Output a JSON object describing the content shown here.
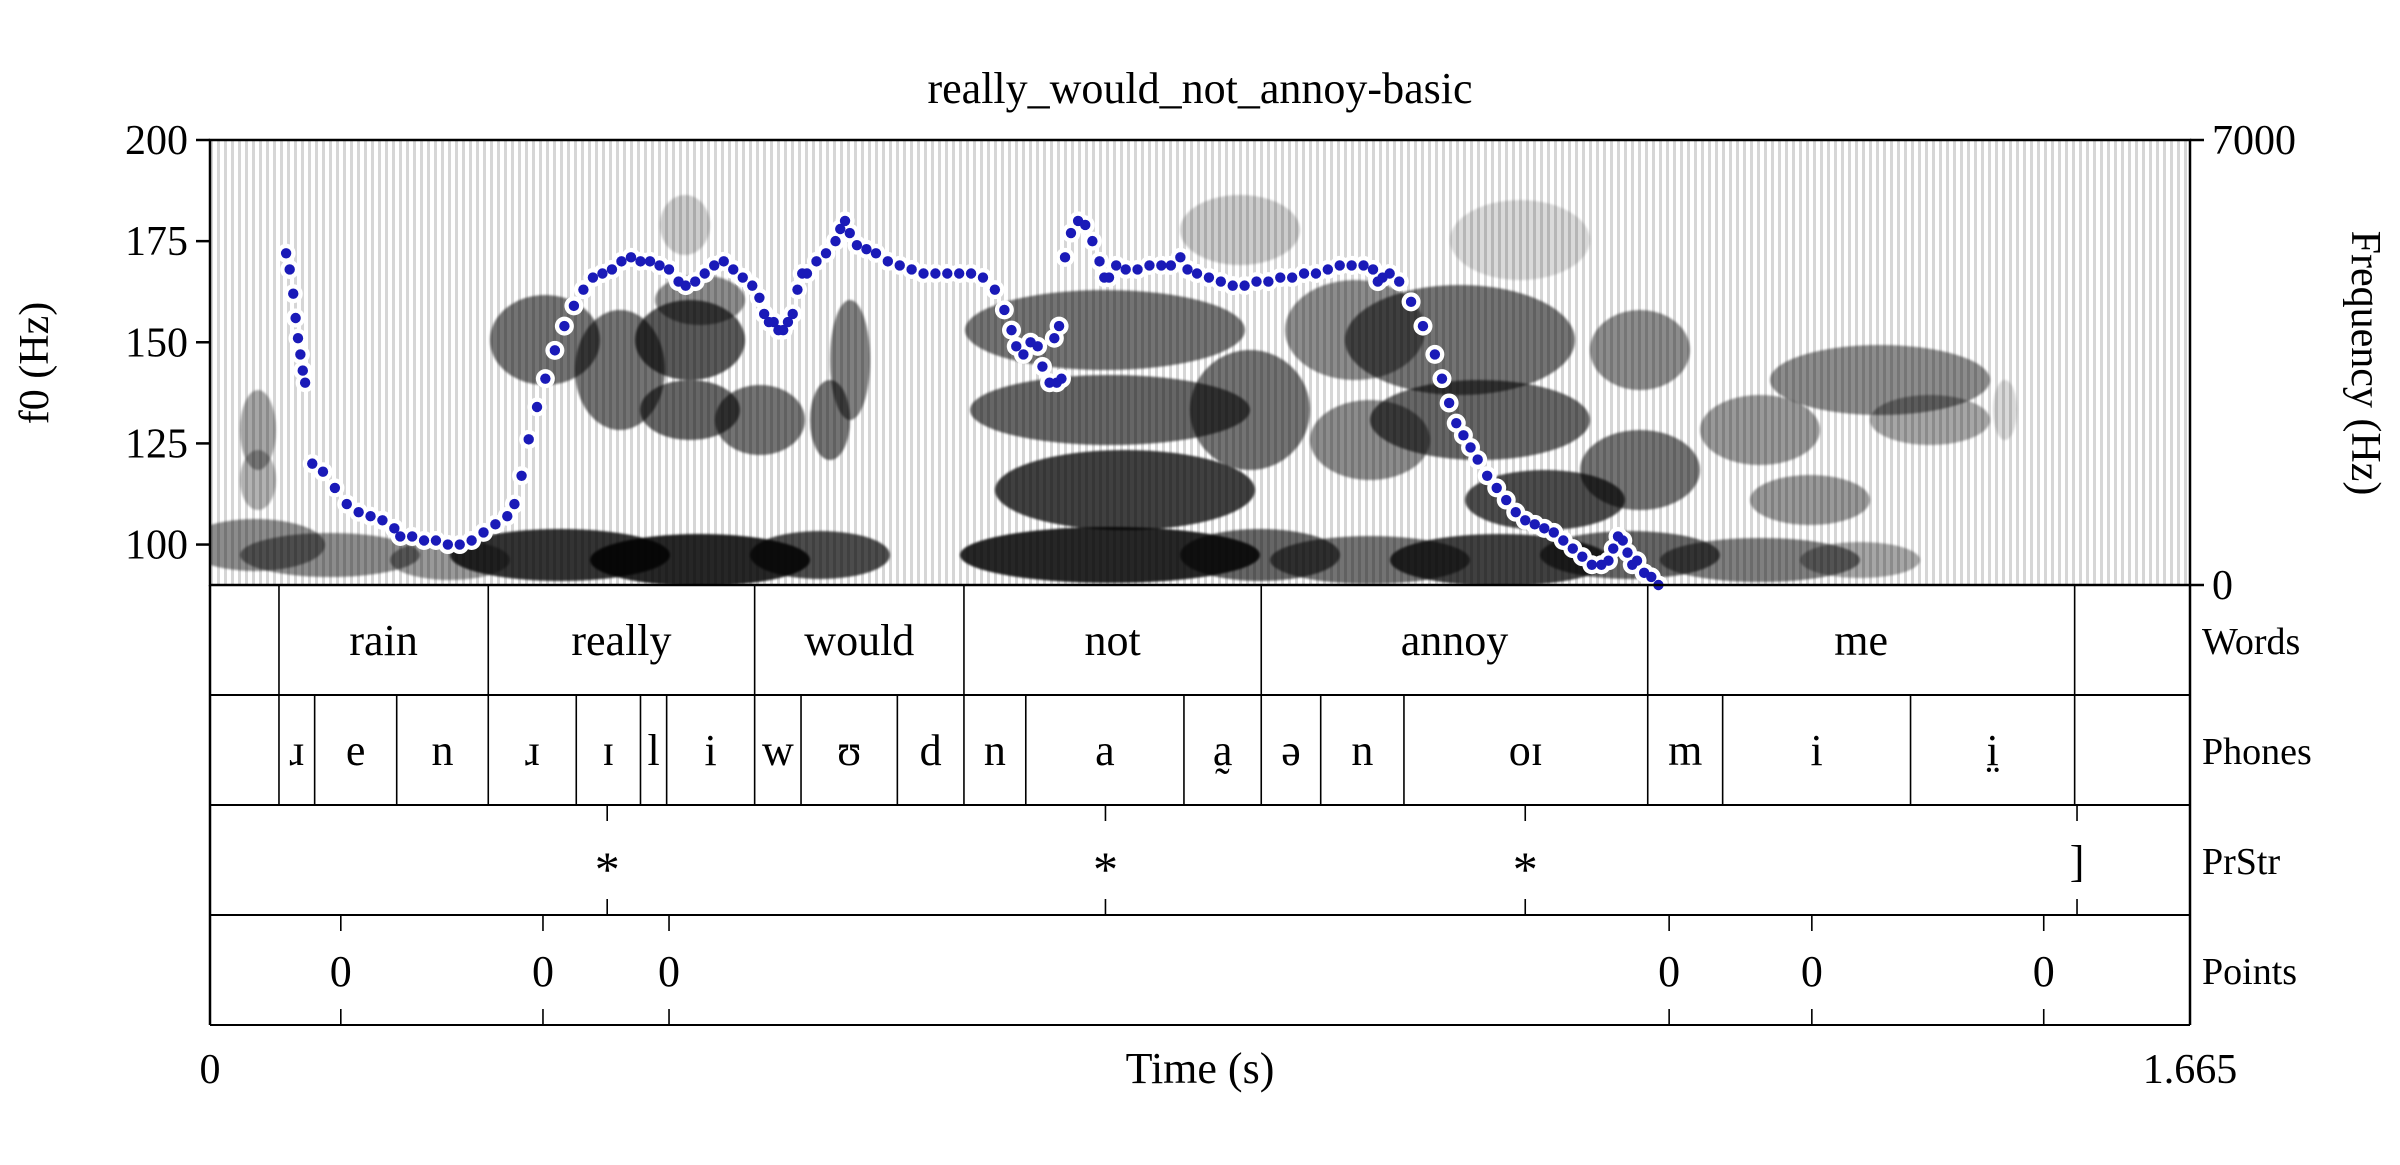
{
  "chart_data": {
    "type": "scatter",
    "title": "really_would_not_annoy-basic",
    "xlabel": "Time (s)",
    "ylabel": "f0 (Hz)",
    "ylabel_right": "Frequency (Hz)",
    "xlim": [
      0,
      1.665
    ],
    "x_tick_labels": [
      "0",
      "1.665"
    ],
    "ylim": [
      90,
      200
    ],
    "y_ticks": [
      100,
      125,
      150,
      175,
      200
    ],
    "y_right_ticks": [
      "0",
      "7000"
    ],
    "grid": false,
    "legend": "none",
    "colors": {
      "f0": "#1a1ab8",
      "halo": "#ffffff",
      "spectrogram": "#000000"
    },
    "f0_track": [
      [
        0.064,
        172
      ],
      [
        0.067,
        168
      ],
      [
        0.07,
        162
      ],
      [
        0.072,
        156
      ],
      [
        0.074,
        151
      ],
      [
        0.076,
        147
      ],
      [
        0.078,
        143
      ],
      [
        0.08,
        140
      ],
      [
        0.086,
        120
      ],
      [
        0.095,
        118
      ],
      [
        0.105,
        114
      ],
      [
        0.115,
        110
      ],
      [
        0.125,
        108
      ],
      [
        0.135,
        107
      ],
      [
        0.145,
        106
      ],
      [
        0.155,
        104
      ],
      [
        0.16,
        102
      ],
      [
        0.17,
        102
      ],
      [
        0.18,
        101
      ],
      [
        0.19,
        101
      ],
      [
        0.2,
        100
      ],
      [
        0.21,
        100
      ],
      [
        0.22,
        101
      ],
      [
        0.23,
        103
      ],
      [
        0.24,
        105
      ],
      [
        0.25,
        107
      ],
      [
        0.256,
        110
      ],
      [
        0.262,
        117
      ],
      [
        0.268,
        126
      ],
      [
        0.275,
        134
      ],
      [
        0.282,
        141
      ],
      [
        0.29,
        148
      ],
      [
        0.298,
        154
      ],
      [
        0.306,
        159
      ],
      [
        0.314,
        163
      ],
      [
        0.322,
        166
      ],
      [
        0.33,
        167
      ],
      [
        0.338,
        168
      ],
      [
        0.346,
        170
      ],
      [
        0.354,
        171
      ],
      [
        0.362,
        170
      ],
      [
        0.37,
        170
      ],
      [
        0.378,
        169
      ],
      [
        0.386,
        168
      ],
      [
        0.394,
        165
      ],
      [
        0.4,
        164
      ],
      [
        0.408,
        165
      ],
      [
        0.416,
        167
      ],
      [
        0.424,
        169
      ],
      [
        0.432,
        170
      ],
      [
        0.44,
        168
      ],
      [
        0.448,
        166
      ],
      [
        0.456,
        164
      ],
      [
        0.462,
        161
      ],
      [
        0.466,
        157
      ],
      [
        0.47,
        155
      ],
      [
        0.474,
        155
      ],
      [
        0.478,
        153
      ],
      [
        0.482,
        153
      ],
      [
        0.486,
        155
      ],
      [
        0.49,
        157
      ],
      [
        0.494,
        163
      ],
      [
        0.498,
        167
      ],
      [
        0.502,
        167
      ],
      [
        0.51,
        170
      ],
      [
        0.518,
        172
      ],
      [
        0.526,
        175
      ],
      [
        0.53,
        178
      ],
      [
        0.534,
        180
      ],
      [
        0.538,
        177
      ],
      [
        0.544,
        174
      ],
      [
        0.552,
        173
      ],
      [
        0.56,
        172
      ],
      [
        0.57,
        170
      ],
      [
        0.58,
        169
      ],
      [
        0.59,
        168
      ],
      [
        0.6,
        167
      ],
      [
        0.61,
        167
      ],
      [
        0.62,
        167
      ],
      [
        0.63,
        167
      ],
      [
        0.64,
        167
      ],
      [
        0.65,
        166
      ],
      [
        0.66,
        163
      ],
      [
        0.668,
        158
      ],
      [
        0.674,
        153
      ],
      [
        0.678,
        149
      ],
      [
        0.684,
        147
      ],
      [
        0.69,
        150
      ],
      [
        0.696,
        149
      ],
      [
        0.7,
        144
      ],
      [
        0.706,
        140
      ],
      [
        0.712,
        140
      ],
      [
        0.716,
        141
      ],
      [
        0.71,
        151
      ],
      [
        0.714,
        154
      ],
      [
        0.719,
        171
      ],
      [
        0.724,
        177
      ],
      [
        0.73,
        180
      ],
      [
        0.736,
        179
      ],
      [
        0.742,
        175
      ],
      [
        0.748,
        170
      ],
      [
        0.752,
        166
      ],
      [
        0.756,
        166
      ],
      [
        0.762,
        169
      ],
      [
        0.77,
        168
      ],
      [
        0.78,
        168
      ],
      [
        0.79,
        169
      ],
      [
        0.8,
        169
      ],
      [
        0.808,
        169
      ],
      [
        0.816,
        171
      ],
      [
        0.822,
        168
      ],
      [
        0.83,
        167
      ],
      [
        0.84,
        166
      ],
      [
        0.85,
        165
      ],
      [
        0.86,
        164
      ],
      [
        0.87,
        164
      ],
      [
        0.88,
        165
      ],
      [
        0.89,
        165
      ],
      [
        0.9,
        166
      ],
      [
        0.91,
        166
      ],
      [
        0.92,
        167
      ],
      [
        0.93,
        167
      ],
      [
        0.94,
        168
      ],
      [
        0.95,
        169
      ],
      [
        0.96,
        169
      ],
      [
        0.97,
        169
      ],
      [
        0.978,
        168
      ],
      [
        0.982,
        165
      ],
      [
        0.986,
        166
      ],
      [
        0.992,
        167
      ],
      [
        1.0,
        165
      ],
      [
        1.01,
        160
      ],
      [
        1.02,
        154
      ],
      [
        1.03,
        147
      ],
      [
        1.036,
        141
      ],
      [
        1.042,
        135
      ],
      [
        1.048,
        130
      ],
      [
        1.054,
        127
      ],
      [
        1.06,
        124
      ],
      [
        1.066,
        121
      ],
      [
        1.074,
        117
      ],
      [
        1.082,
        114
      ],
      [
        1.09,
        111
      ],
      [
        1.098,
        108
      ],
      [
        1.106,
        106
      ],
      [
        1.114,
        105
      ],
      [
        1.122,
        104
      ],
      [
        1.13,
        103
      ],
      [
        1.138,
        101
      ],
      [
        1.146,
        99
      ],
      [
        1.154,
        97
      ],
      [
        1.162,
        95
      ],
      [
        1.17,
        95
      ],
      [
        1.176,
        96
      ],
      [
        1.18,
        99
      ],
      [
        1.184,
        102
      ],
      [
        1.188,
        101
      ],
      [
        1.192,
        98
      ],
      [
        1.196,
        95
      ],
      [
        1.2,
        96
      ],
      [
        1.206,
        93
      ],
      [
        1.212,
        92
      ],
      [
        1.218,
        90
      ]
    ],
    "tiers": [
      {
        "name": "Words",
        "type": "interval",
        "intervals": [
          {
            "start": 0.058,
            "end": 0.234,
            "label": "rain"
          },
          {
            "start": 0.234,
            "end": 0.458,
            "label": "really"
          },
          {
            "start": 0.458,
            "end": 0.634,
            "label": "would"
          },
          {
            "start": 0.634,
            "end": 0.884,
            "label": "not"
          },
          {
            "start": 0.884,
            "end": 1.209,
            "label": "annoy"
          },
          {
            "start": 1.209,
            "end": 1.568,
            "label": "me"
          }
        ]
      },
      {
        "name": "Phones",
        "type": "interval",
        "intervals": [
          {
            "start": 0.058,
            "end": 0.088,
            "label": "ɹ"
          },
          {
            "start": 0.088,
            "end": 0.157,
            "label": "e"
          },
          {
            "start": 0.157,
            "end": 0.234,
            "label": "n"
          },
          {
            "start": 0.234,
            "end": 0.308,
            "label": "ɹ"
          },
          {
            "start": 0.308,
            "end": 0.362,
            "label": "ɪ"
          },
          {
            "start": 0.362,
            "end": 0.384,
            "label": "l"
          },
          {
            "start": 0.384,
            "end": 0.458,
            "label": "i"
          },
          {
            "start": 0.458,
            "end": 0.497,
            "label": "w"
          },
          {
            "start": 0.497,
            "end": 0.578,
            "label": "ʊ"
          },
          {
            "start": 0.578,
            "end": 0.634,
            "label": "d"
          },
          {
            "start": 0.634,
            "end": 0.686,
            "label": "n"
          },
          {
            "start": 0.686,
            "end": 0.819,
            "label": "a"
          },
          {
            "start": 0.819,
            "end": 0.884,
            "label": "a̰"
          },
          {
            "start": 0.884,
            "end": 0.934,
            "label": "ə"
          },
          {
            "start": 0.934,
            "end": 1.004,
            "label": "n"
          },
          {
            "start": 1.004,
            "end": 1.209,
            "label": "oɪ"
          },
          {
            "start": 1.209,
            "end": 1.272,
            "label": "m"
          },
          {
            "start": 1.272,
            "end": 1.43,
            "label": "i"
          },
          {
            "start": 1.43,
            "end": 1.568,
            "label": "i̤"
          }
        ]
      },
      {
        "name": "PrStr",
        "type": "point",
        "points": [
          {
            "time": 0.334,
            "label": "*"
          },
          {
            "time": 0.753,
            "label": "*"
          },
          {
            "time": 1.106,
            "label": "*"
          },
          {
            "time": 1.57,
            "label": "]"
          }
        ]
      },
      {
        "name": "Points",
        "type": "point",
        "points": [
          {
            "time": 0.11,
            "label": "0"
          },
          {
            "time": 0.28,
            "label": "0"
          },
          {
            "time": 0.386,
            "label": "0"
          },
          {
            "time": 1.227,
            "label": "0"
          },
          {
            "time": 1.347,
            "label": "0"
          },
          {
            "time": 1.542,
            "label": "0"
          }
        ]
      }
    ]
  }
}
